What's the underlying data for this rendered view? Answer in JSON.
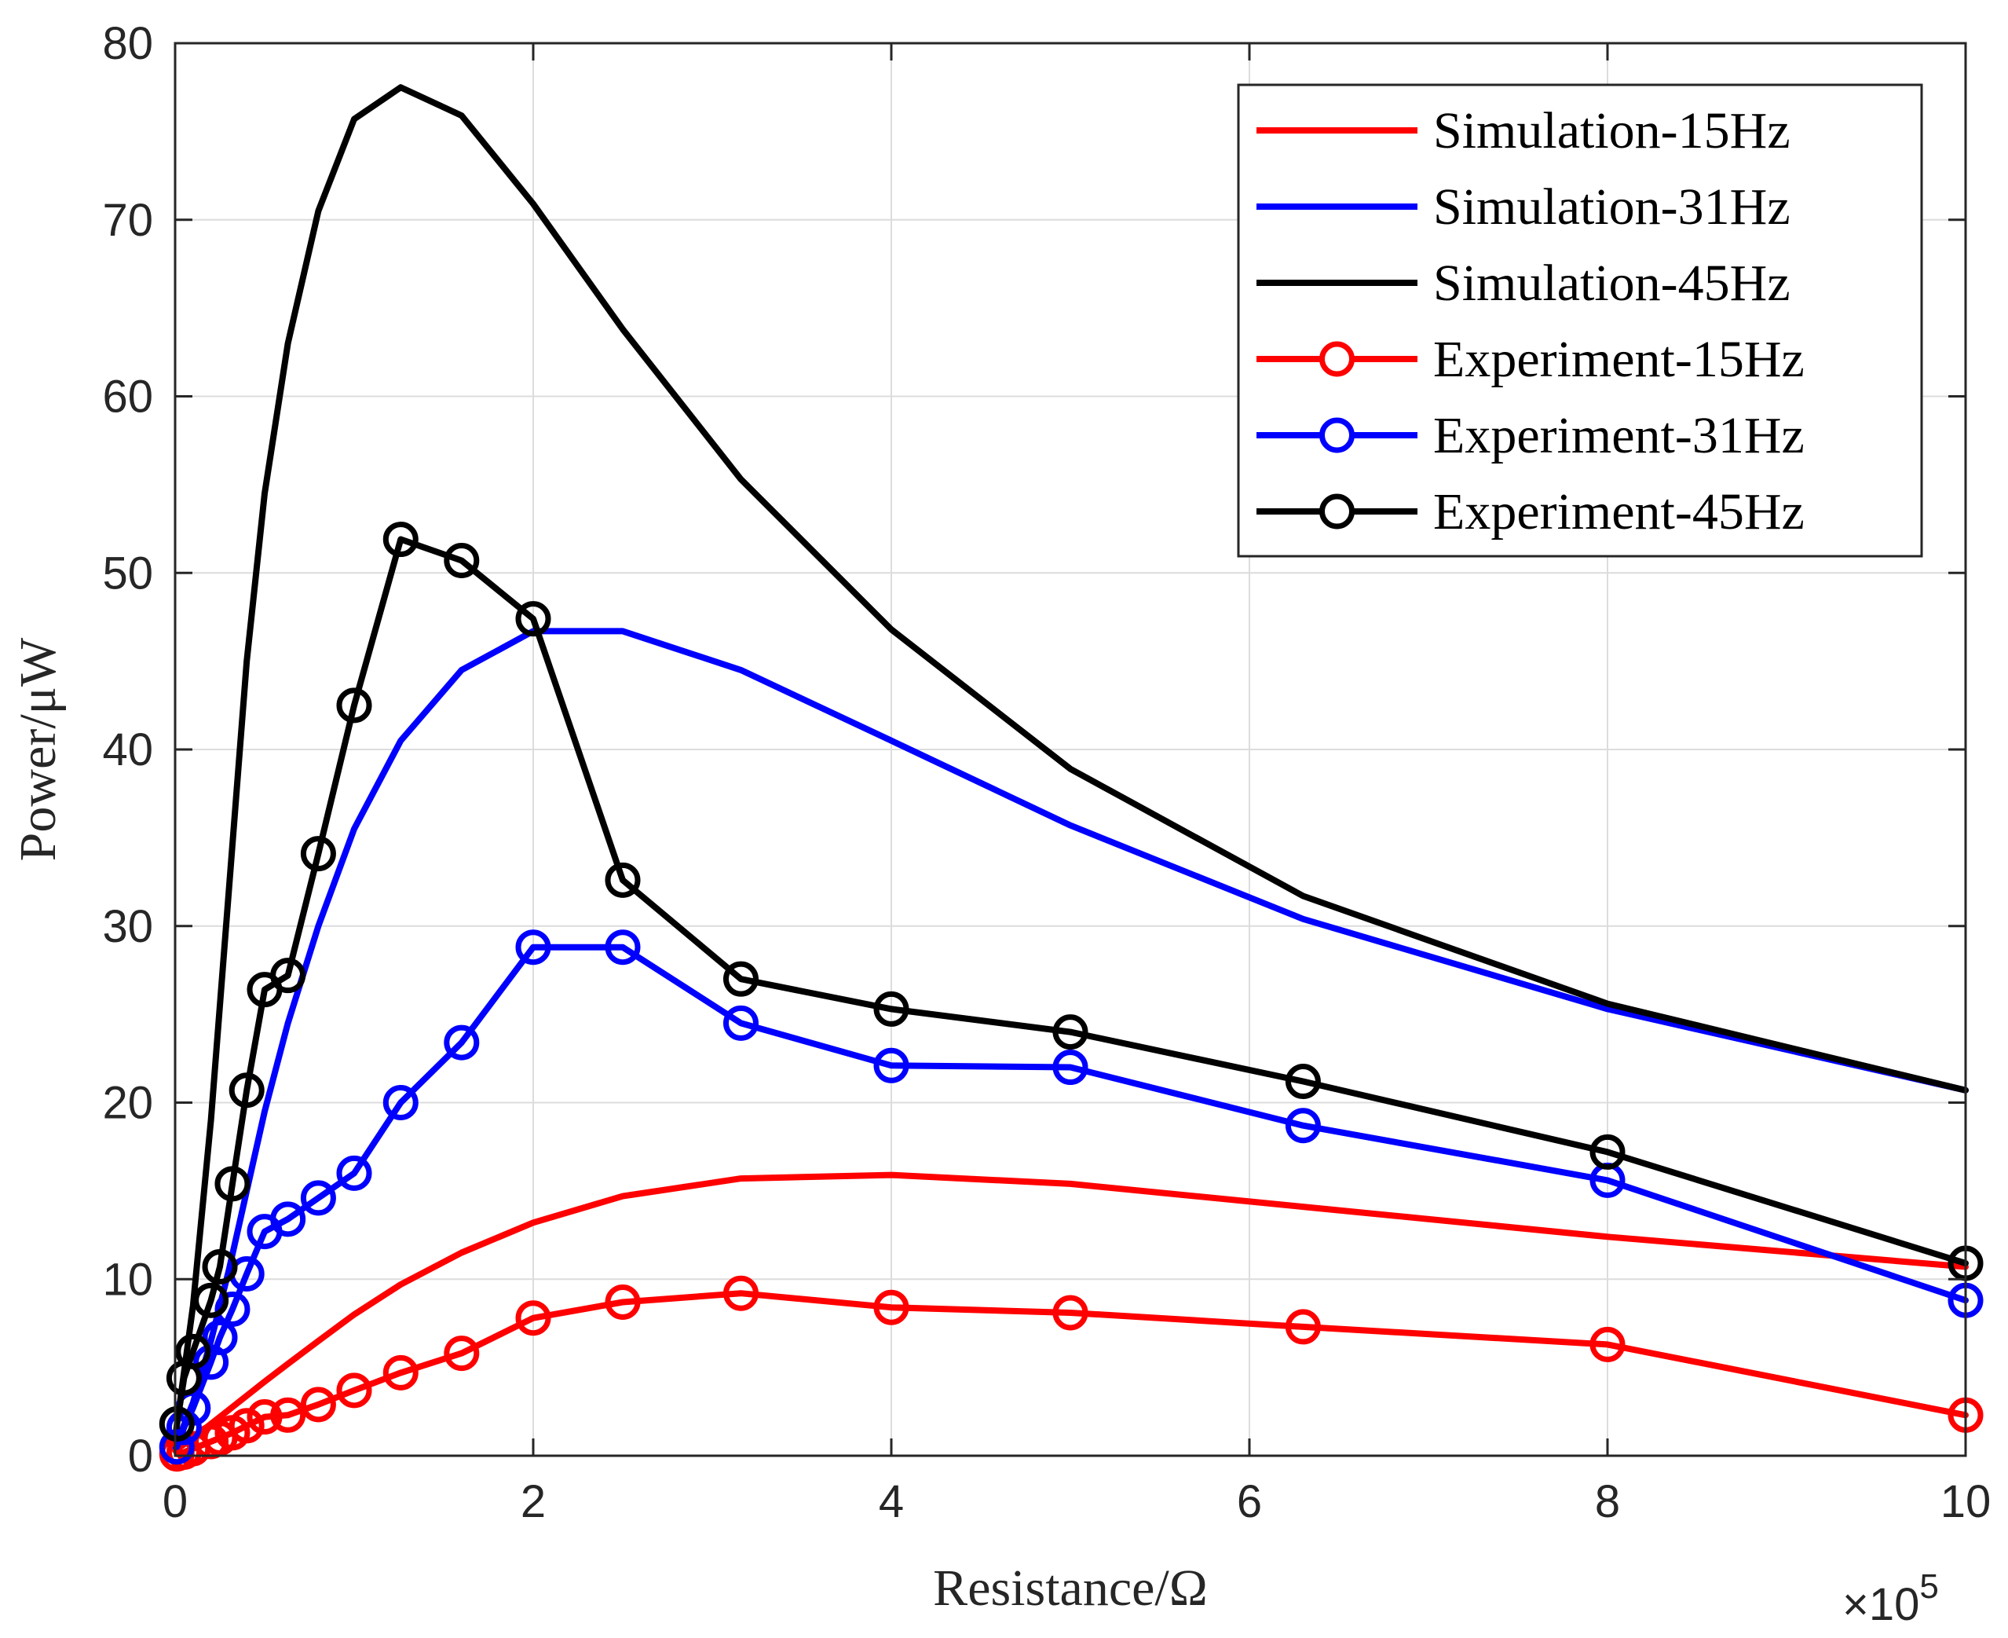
{
  "chart_data": {
    "type": "line",
    "title": "",
    "xlabel": "Resistance/Ω",
    "ylabel": "Power/μW",
    "x_exponent_label": "×10",
    "x_exponent_power": "5",
    "xlim": [
      0,
      10
    ],
    "ylim": [
      0,
      80
    ],
    "xticks": [
      0,
      2,
      4,
      6,
      8,
      10
    ],
    "yticks": [
      0,
      10,
      20,
      30,
      40,
      50,
      60,
      70,
      80
    ],
    "grid": true,
    "legend_position": "top-right",
    "series": [
      {
        "name": "Simulation-15Hz",
        "color": "#ff0000",
        "marker": "none",
        "x": [
          0,
          0.1,
          0.2,
          0.3,
          0.4,
          0.5,
          0.63,
          0.8,
          1.0,
          1.26,
          1.6,
          2.0,
          2.5,
          3.16,
          4.0,
          5.0,
          6.3,
          8.0,
          10.0
        ],
        "y": [
          0.3,
          1.0,
          1.8,
          2.6,
          3.4,
          4.2,
          5.2,
          6.5,
          8.0,
          9.7,
          11.5,
          13.2,
          14.7,
          15.7,
          15.9,
          15.4,
          14.1,
          12.4,
          10.7
        ]
      },
      {
        "name": "Simulation-31Hz",
        "color": "#0000ff",
        "marker": "none",
        "x": [
          0,
          0.1,
          0.2,
          0.3,
          0.4,
          0.5,
          0.63,
          0.8,
          1.0,
          1.26,
          1.6,
          2.0,
          2.5,
          3.16,
          4.0,
          5.0,
          6.3,
          8.0,
          10.0
        ],
        "y": [
          0.5,
          3.0,
          6.5,
          10.5,
          15.0,
          19.5,
          24.5,
          30.0,
          35.5,
          40.5,
          44.5,
          46.7,
          46.7,
          44.5,
          40.5,
          35.7,
          30.4,
          25.3,
          20.7
        ]
      },
      {
        "name": "Simulation-45Hz",
        "color": "#000000",
        "marker": "none",
        "x": [
          0,
          0.1,
          0.2,
          0.3,
          0.4,
          0.5,
          0.63,
          0.8,
          1.0,
          1.26,
          1.6,
          2.0,
          2.5,
          3.16,
          4.0,
          5.0,
          6.3,
          8.0,
          10.0
        ],
        "y": [
          1.0,
          8.5,
          19.0,
          32.0,
          45.0,
          54.5,
          63.0,
          70.5,
          75.7,
          77.5,
          75.9,
          70.9,
          63.8,
          55.3,
          46.8,
          38.9,
          31.7,
          25.6,
          20.7
        ]
      },
      {
        "name": "Experiment-15Hz",
        "color": "#ff0000",
        "marker": "circle",
        "x": [
          0.01,
          0.05,
          0.1,
          0.2,
          0.25,
          0.32,
          0.4,
          0.5,
          0.63,
          0.8,
          1.0,
          1.26,
          1.6,
          2.0,
          2.5,
          3.16,
          4.0,
          5.0,
          6.3,
          8.0,
          10.0
        ],
        "y": [
          0.1,
          0.2,
          0.4,
          0.8,
          1.0,
          1.3,
          1.7,
          2.2,
          2.3,
          2.9,
          3.7,
          4.7,
          5.8,
          7.8,
          8.7,
          9.2,
          8.4,
          8.1,
          7.3,
          6.3,
          2.3
        ]
      },
      {
        "name": "Experiment-31Hz",
        "color": "#0000ff",
        "marker": "circle",
        "x": [
          0.01,
          0.05,
          0.1,
          0.2,
          0.25,
          0.32,
          0.4,
          0.5,
          0.63,
          0.8,
          1.0,
          1.26,
          1.6,
          2.0,
          2.5,
          3.16,
          4.0,
          5.0,
          6.3,
          8.0,
          10.0
        ],
        "y": [
          0.5,
          1.6,
          2.7,
          5.3,
          6.7,
          8.3,
          10.3,
          12.7,
          13.4,
          14.6,
          16.0,
          20.0,
          23.4,
          28.8,
          28.8,
          24.5,
          22.1,
          22.0,
          18.7,
          15.6,
          8.8
        ]
      },
      {
        "name": "Experiment-45Hz",
        "color": "#000000",
        "marker": "circle",
        "x": [
          0.01,
          0.05,
          0.1,
          0.2,
          0.25,
          0.32,
          0.4,
          0.5,
          0.63,
          0.8,
          1.0,
          1.26,
          1.6,
          2.0,
          2.5,
          3.16,
          4.0,
          5.0,
          6.3,
          8.0,
          10.0
        ],
        "y": [
          1.8,
          4.4,
          5.9,
          8.8,
          10.7,
          15.4,
          20.7,
          26.4,
          27.2,
          34.1,
          42.5,
          51.9,
          50.7,
          47.4,
          32.6,
          27.0,
          25.3,
          24.0,
          21.2,
          17.2,
          10.9
        ]
      }
    ]
  }
}
